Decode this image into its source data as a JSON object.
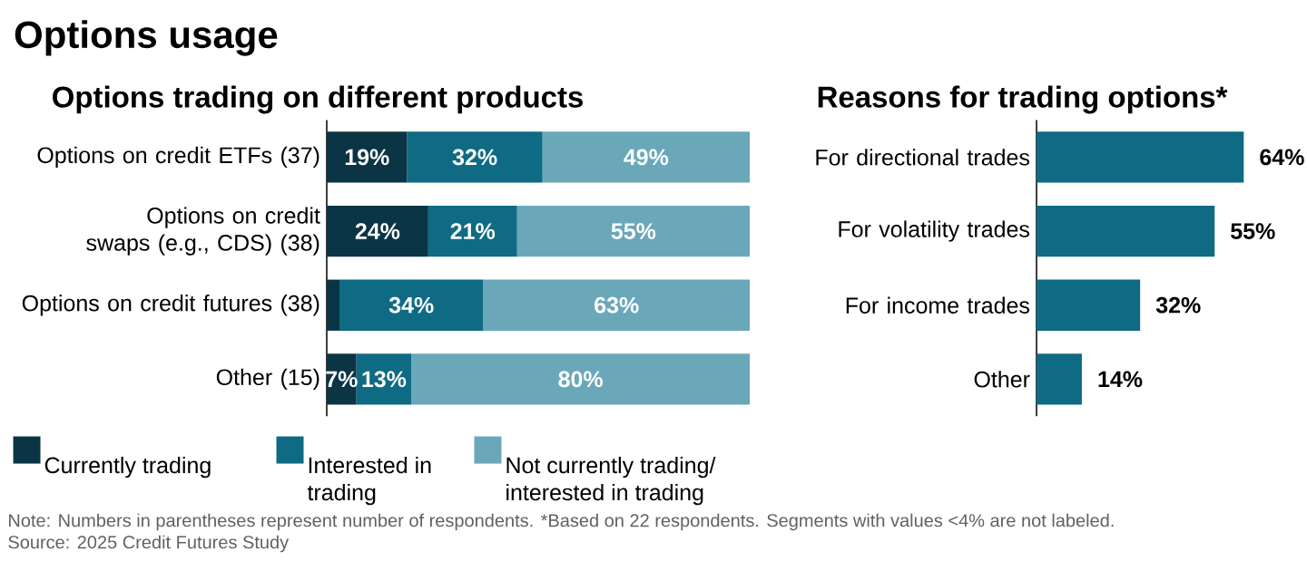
{
  "chart_data": [
    {
      "type": "bar",
      "title": "Options usage",
      "subtitle": "Options trading on different products",
      "orientation": "horizontal",
      "stacked": true,
      "legend": "bottom",
      "categories": [
        "Options on credit ETFs (37)",
        "Options on credit swaps (e.g., CDS) (38)",
        "Options on credit futures (38)",
        "Other (15)"
      ],
      "series": [
        {
          "name": "Currently trading",
          "color": "#0b3545",
          "values": [
            19,
            24,
            3,
            7
          ],
          "value_labels": [
            "19%",
            "24%",
            null,
            "7%"
          ]
        },
        {
          "name": "Interested in trading",
          "color": "#0f6b84",
          "values": [
            32,
            21,
            34,
            13
          ],
          "value_labels": [
            "32%",
            "21%",
            "34%",
            "13%"
          ]
        },
        {
          "name": "Not currently trading/ interested in trading",
          "color": "#6aa8b9",
          "values": [
            49,
            55,
            63,
            80
          ],
          "value_labels": [
            "49%",
            "55%",
            "63%",
            "80%"
          ]
        }
      ],
      "annotations": [
        "Note: Numbers in parentheses represent number of respondents. *Based on 22 respondents. Segments with values <4% are not labeled.",
        "Source: 2025 Credit Futures Study"
      ]
    },
    {
      "type": "bar",
      "title": "Reasons for trading options*",
      "orientation": "horizontal",
      "categories": [
        "For directional trades",
        "For volatility trades",
        "For income trades",
        "Other"
      ],
      "values": [
        64,
        55,
        32,
        14
      ],
      "value_labels": [
        "64%",
        "55%",
        "32%",
        "14%"
      ],
      "color": "#0f6b84"
    }
  ]
}
